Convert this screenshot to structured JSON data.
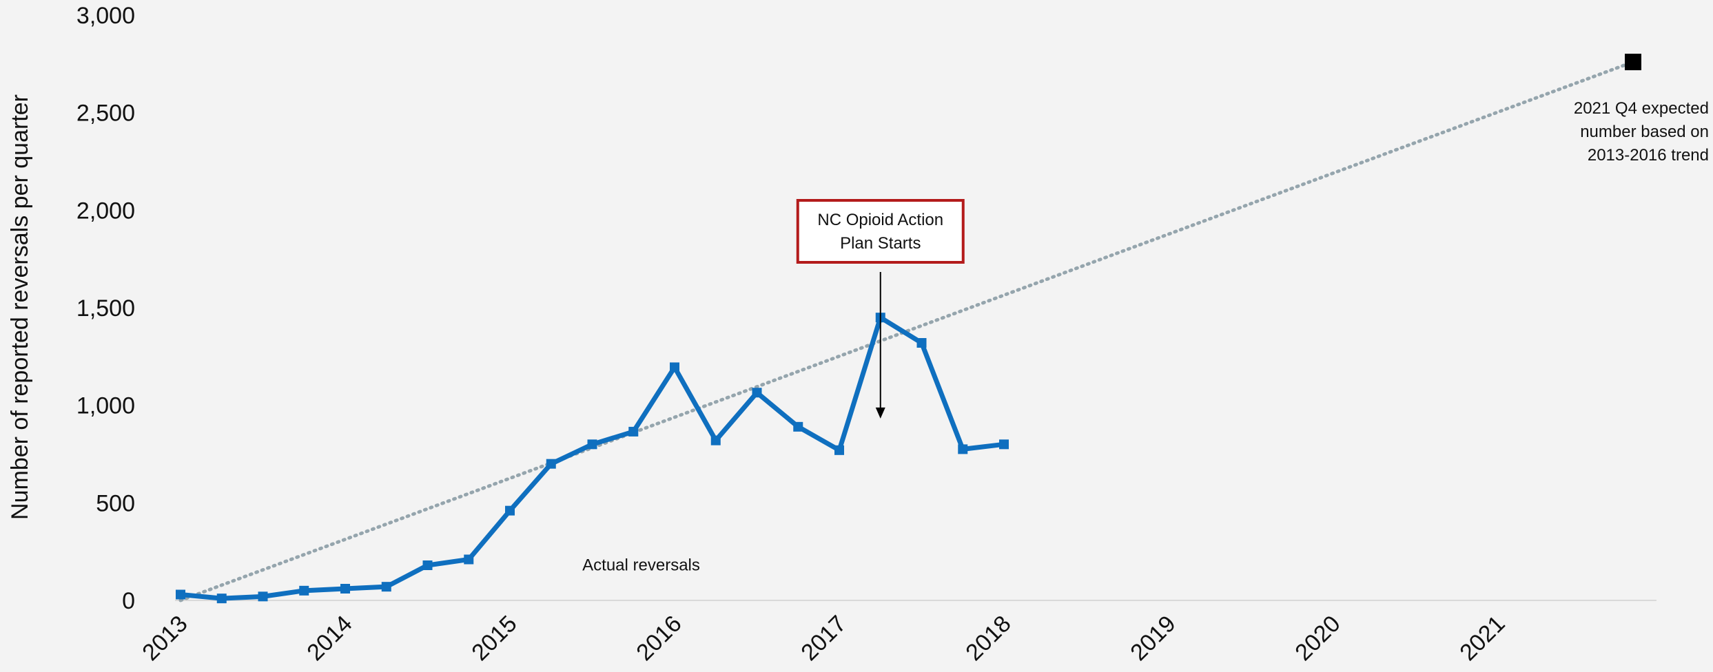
{
  "chart_data": {
    "type": "line",
    "title": "",
    "xlabel": "",
    "ylabel": "Number of reported reversals per quarter",
    "ylim": [
      0,
      3000
    ],
    "y_ticks": [
      "0",
      "500",
      "1,000",
      "1,500",
      "2,000",
      "2,500",
      "3,000"
    ],
    "y_tick_values": [
      0,
      500,
      1000,
      1500,
      2000,
      2500,
      3000
    ],
    "x_ticks": [
      "2013",
      "2014",
      "2015",
      "2016",
      "2017",
      "2018",
      "2019",
      "2020",
      "2021"
    ],
    "x_tick_values": [
      2013,
      2014,
      2015,
      2016,
      2017,
      2018,
      2019,
      2020,
      2021
    ],
    "xlim": [
      2013,
      2021.82
    ],
    "grid": false,
    "series": [
      {
        "label": "Actual reversals",
        "color": "#0f6fbf",
        "x": [
          2013.0,
          2013.25,
          2013.5,
          2013.75,
          2014.0,
          2014.25,
          2014.5,
          2014.75,
          2015.0,
          2015.25,
          2015.5,
          2015.75,
          2016.0,
          2016.25,
          2016.5,
          2016.75,
          2017.0,
          2017.25,
          2017.5,
          2017.75,
          2018.0,
          2018.25,
          2018.5
        ],
        "values": [
          30,
          10,
          20,
          50,
          60,
          70,
          180,
          210,
          460,
          700,
          800,
          865,
          1195,
          820,
          1065,
          890,
          770,
          1450,
          1320,
          775,
          800,
          null,
          null
        ]
      },
      {
        "label": "2013-2016 trend",
        "color": "#95a5ad",
        "style": "dotted",
        "x": [
          2013.0,
          2021.82
        ],
        "values": [
          0,
          2760
        ]
      }
    ],
    "expected_point": {
      "x": 2021.82,
      "value": 2760,
      "color": "#000000"
    },
    "annotations": {
      "series_label": "Actual reversals",
      "expected_label": [
        "2021 Q4 expected",
        "number based on",
        "2013-2016 trend"
      ],
      "callout": {
        "lines": [
          "NC Opioid Action",
          "Plan Starts"
        ],
        "border_color": "#b31b1b",
        "arrow_target_x": 2017.25,
        "arrow_target_value": 890
      }
    },
    "colors": {
      "background": "#f3f3f3",
      "axis": "#d9d9d9",
      "text": "#111111"
    }
  }
}
